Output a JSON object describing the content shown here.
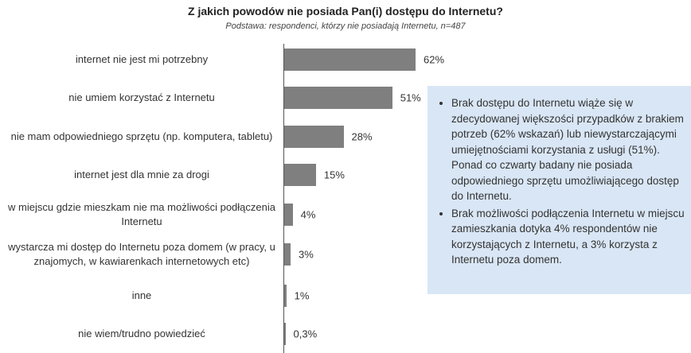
{
  "chart_data": {
    "type": "bar",
    "orientation": "horizontal",
    "title": "Z jakich powodów nie posiada Pan(i) dostępu do Internetu?",
    "subtitle": "Podstawa: respondenci, którzy nie posiadają Internetu, n=487",
    "categories": [
      "internet nie jest mi potrzebny",
      "nie umiem korzystać z Internetu",
      "nie mam odpowiedniego sprzętu (np. komputera, tabletu)",
      "internet jest dla mnie za drogi",
      "w miejscu gdzie mieszkam nie ma możliwości podłączenia Internetu",
      "wystarcza mi dostęp do Internetu poza domem (w pracy, u znajomych, w kawiarenkach internetowych etc)",
      "inne",
      "nie wiem/trudno powiedzieć"
    ],
    "values": [
      62,
      51,
      28,
      15,
      4,
      3,
      1,
      0.3
    ],
    "data_labels": [
      "62%",
      "51%",
      "28%",
      "15%",
      "4%",
      "3%",
      "1%",
      "0,3%"
    ],
    "xlim": [
      0,
      62
    ],
    "grid": false,
    "bar_color": "#7f7f7f"
  },
  "note": {
    "bullets": [
      "Brak dostępu do Internetu wiąże się w zdecydowanej większości przypadków z brakiem potrzeb (62% wskazań) lub niewystarczającymi umiejętnościami korzystania z usługi (51%). Ponad co czwarty badany nie posiada odpowiedniego sprzętu umożliwiającego dostęp do Internetu.",
      "Brak możliwości podłączenia Internetu w miejscu zamieszkania dotyka 4% respondentów nie korzystających z Internetu, a 3% korzysta z Internetu poza domem."
    ],
    "background": "#d9e6f5"
  }
}
